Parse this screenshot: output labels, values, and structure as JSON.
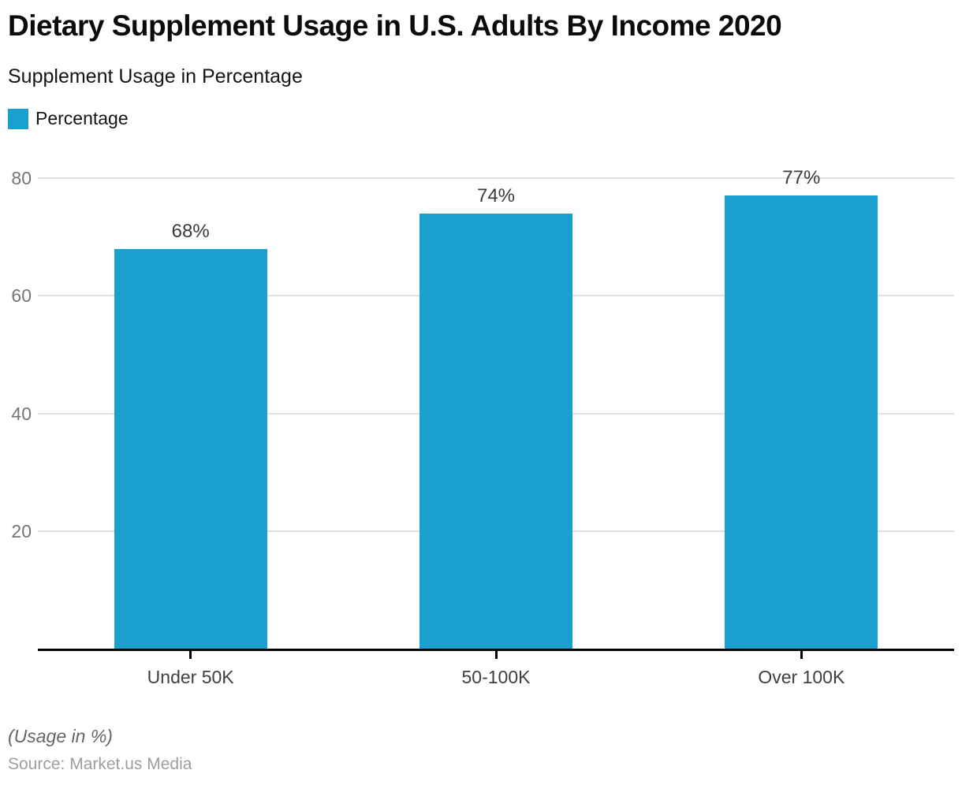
{
  "header": {
    "title": "Dietary Supplement Usage in U.S. Adults By Income 2020",
    "subtitle": "Supplement Usage in Percentage"
  },
  "legend": {
    "label": "Percentage",
    "color": "#1AA0CE"
  },
  "chart_data": {
    "type": "bar",
    "title": "Dietary Supplement Usage in U.S. Adults By Income 2020",
    "subtitle": "Supplement Usage in Percentage",
    "categories": [
      "Under 50K",
      "50-100K",
      "Over 100K"
    ],
    "series": [
      {
        "name": "Percentage",
        "values": [
          68,
          74,
          77
        ]
      }
    ],
    "data_labels": [
      "68%",
      "74%",
      "77%"
    ],
    "xlabel": "",
    "ylabel": "",
    "ylim": [
      0,
      80
    ],
    "yticks": [
      20,
      40,
      60,
      80
    ],
    "grid": true,
    "legend_position": "top-left",
    "bar_color": "#1AA0CE"
  },
  "footer": {
    "note": "(Usage in %)",
    "source": "Source: Market.us Media"
  },
  "colors": {
    "bar": "#1AA0CE",
    "gridline": "#E0E0E0",
    "axis": "#000000",
    "y_tick_label": "#757575",
    "x_category_label": "#3F3F3F",
    "data_label": "#3A3A3A",
    "note": "#666666",
    "source": "#9E9E9E",
    "background": "#FFFFFF"
  }
}
